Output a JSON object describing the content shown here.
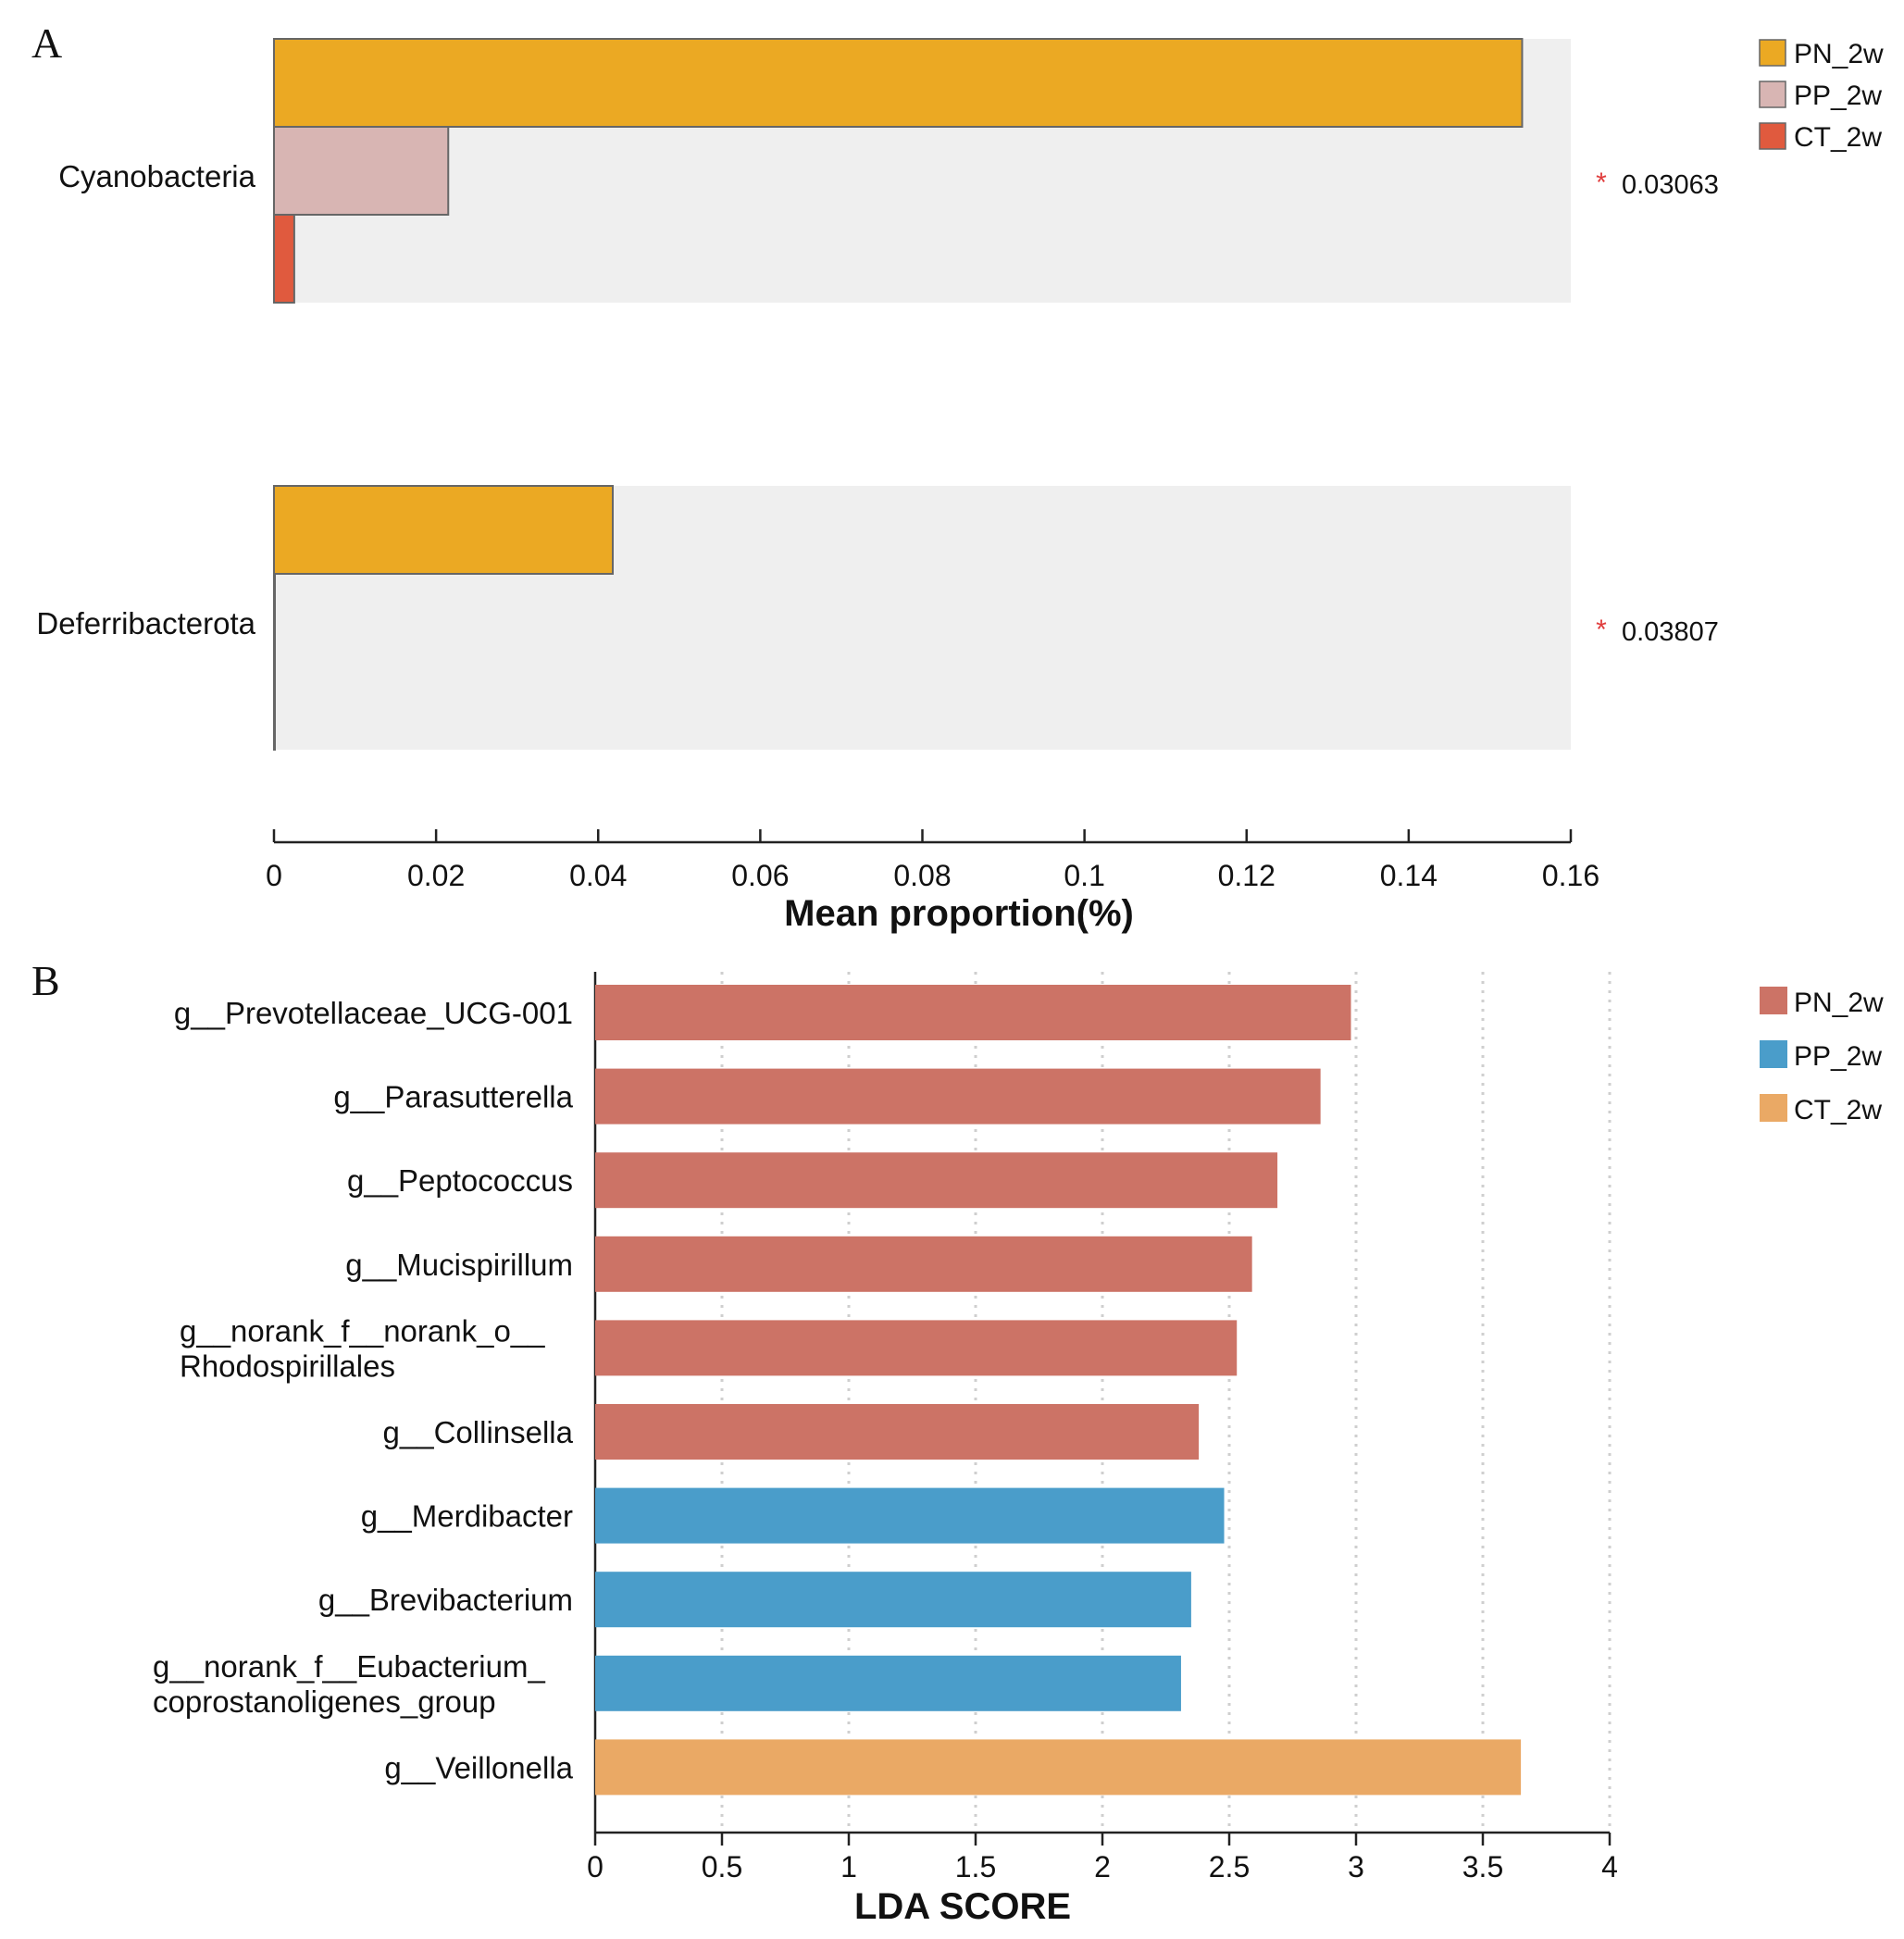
{
  "chart_data": [
    {
      "panel": "A",
      "type": "bar",
      "orientation": "horizontal",
      "categories": [
        "Cyanobacteria",
        "Deferribacterota"
      ],
      "series": [
        {
          "name": "PN_2w",
          "values": [
            0.154,
            0.0418
          ],
          "color": "#EBA923"
        },
        {
          "name": "PP_2w",
          "values": [
            0.0215,
            0.0
          ],
          "color": "#D8B5B3"
        },
        {
          "name": "CT_2w",
          "values": [
            0.0025,
            0.0
          ],
          "color": "#E05A3E"
        }
      ],
      "p_values": [
        "0.03063",
        "0.03807"
      ],
      "significance_marker": "*",
      "xlabel": "Mean proportion(%)",
      "xlim": [
        0,
        0.16
      ],
      "xticks": [
        "0",
        "0.02",
        "0.04",
        "0.06",
        "0.08",
        "0.1",
        "0.12",
        "0.14",
        "0.16"
      ],
      "legend_position": "top-right"
    },
    {
      "panel": "B",
      "type": "bar",
      "orientation": "horizontal",
      "categories": [
        [
          "g__Prevotellaceae_UCG-001"
        ],
        [
          "g__Parasutterella"
        ],
        [
          "g__Peptococcus"
        ],
        [
          "g__Mucispirillum"
        ],
        [
          "g__norank_f__norank_o__",
          "Rhodospirillales"
        ],
        [
          "g__Collinsella"
        ],
        [
          "g__Merdibacter"
        ],
        [
          "g__Brevibacterium"
        ],
        [
          "g__norank_f__Eubacterium_",
          "coprostanoligenes_group"
        ],
        [
          "g__Veillonella"
        ]
      ],
      "values": [
        2.98,
        2.86,
        2.69,
        2.59,
        2.53,
        2.38,
        2.48,
        2.35,
        2.31,
        3.65
      ],
      "groups": [
        "PN_2w",
        "PN_2w",
        "PN_2w",
        "PN_2w",
        "PN_2w",
        "PN_2w",
        "PP_2w",
        "PP_2w",
        "PP_2w",
        "CT_2w"
      ],
      "group_colors": {
        "PN_2w": "#CC7366",
        "PP_2w": "#4A9DCA",
        "CT_2w": "#EAA965"
      },
      "legend": [
        "PN_2w",
        "PP_2w",
        "CT_2w"
      ],
      "xlabel": "LDA SCORE",
      "xlim": [
        0,
        4
      ],
      "xticks": [
        "0",
        "0.5",
        "1",
        "1.5",
        "2",
        "2.5",
        "3",
        "3.5",
        "4"
      ],
      "grid": "vertical dotted",
      "legend_position": "top-right"
    }
  ]
}
